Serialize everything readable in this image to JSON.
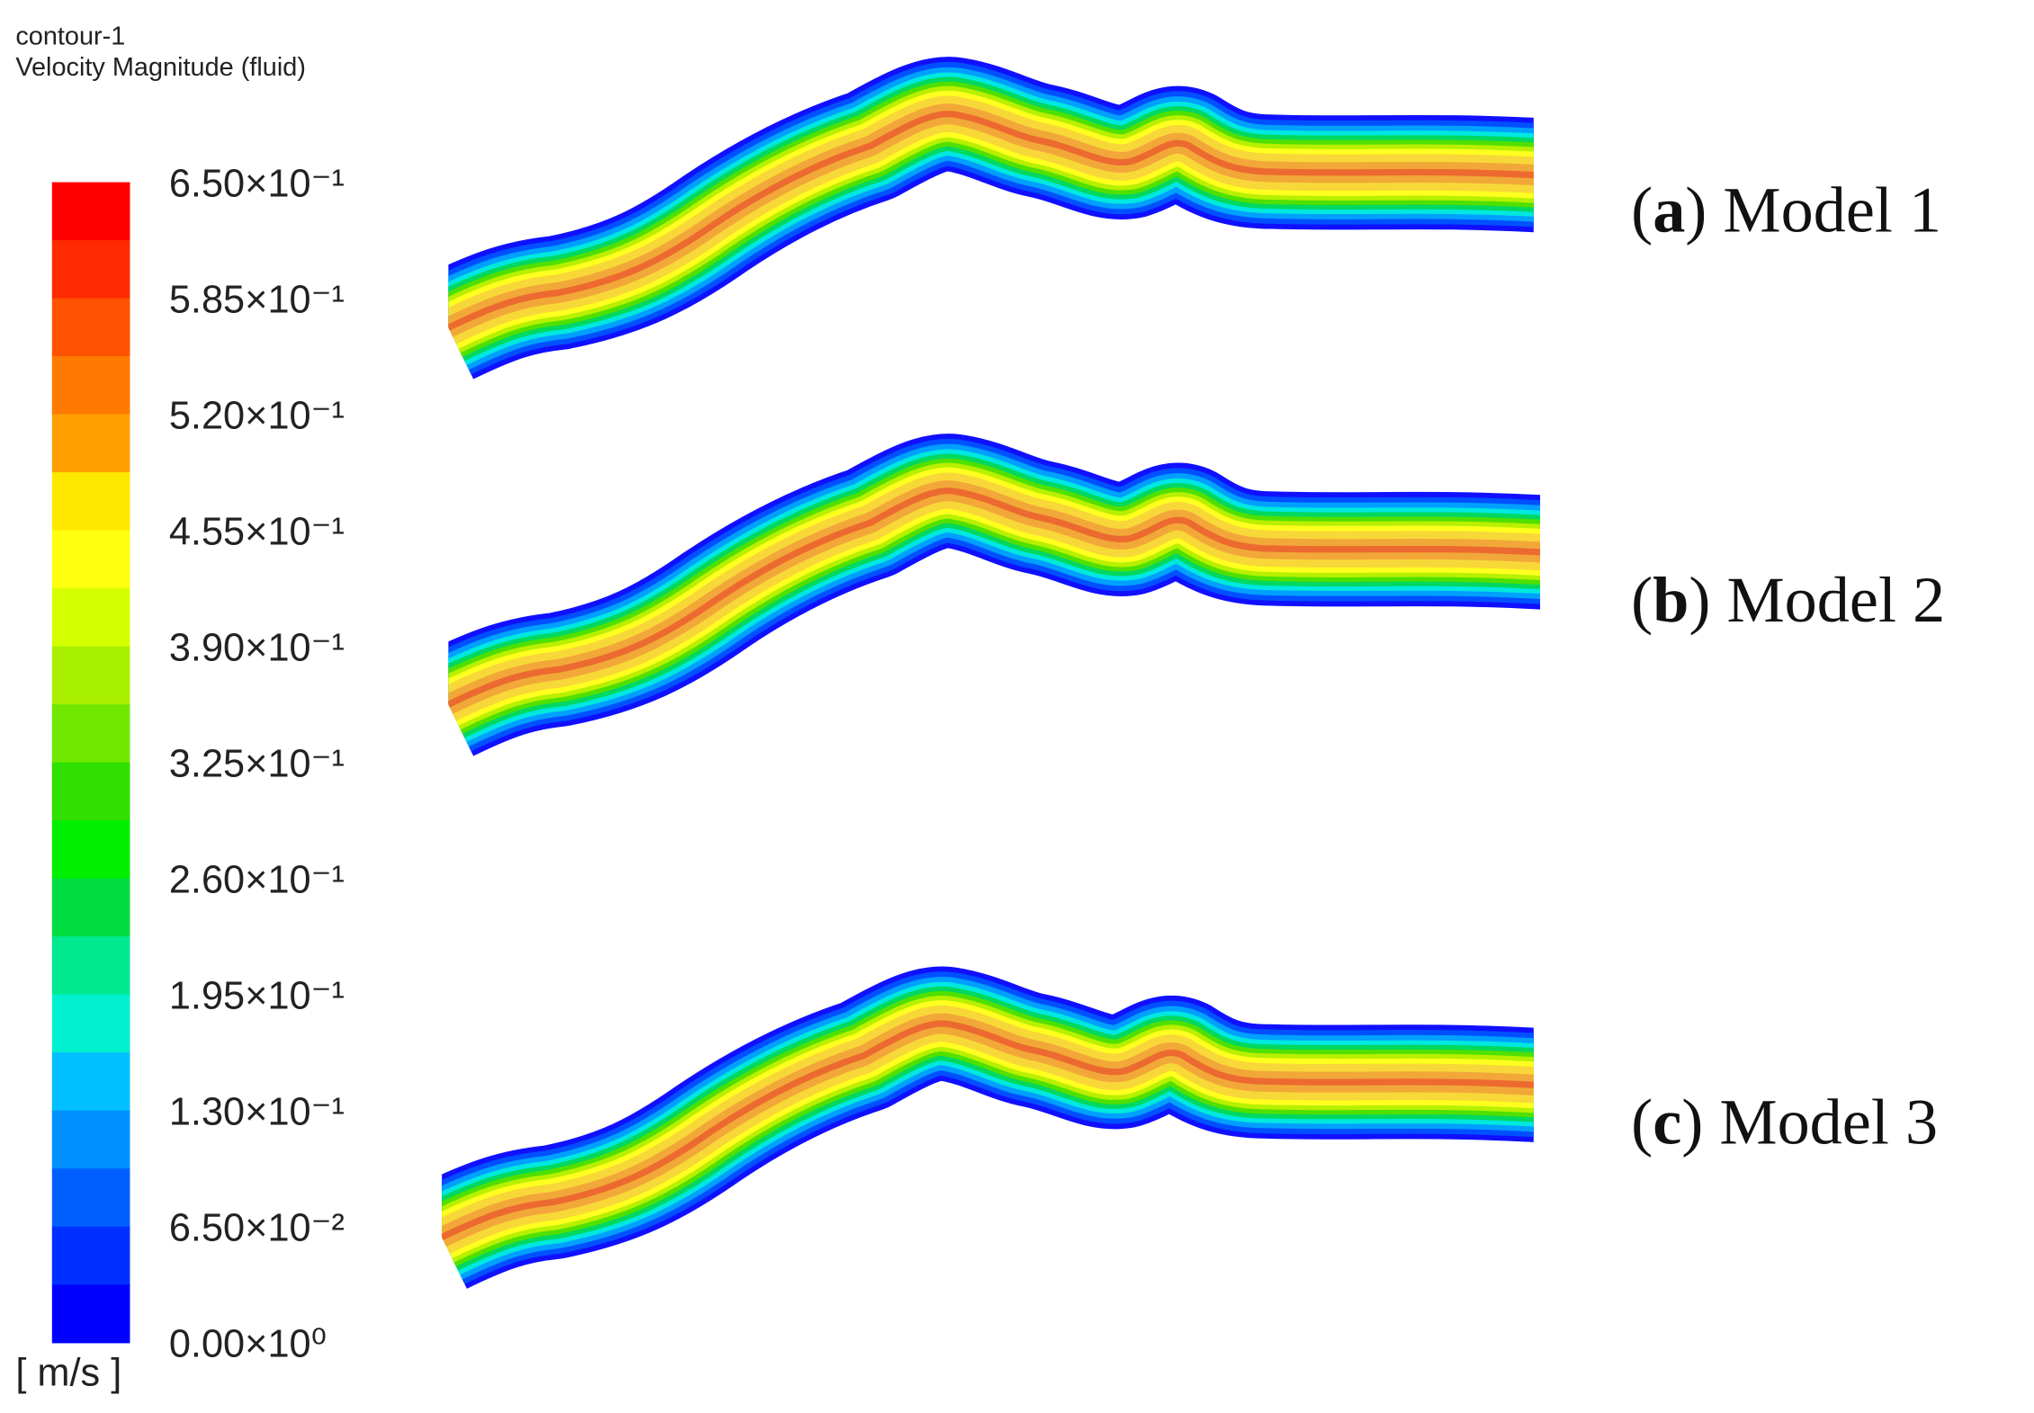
{
  "header": {
    "title": "contour-1",
    "variable": "Velocity Magnitude (fluid)"
  },
  "colorbar": {
    "labels": [
      "6.50×10⁻¹",
      "5.85×10⁻¹",
      "5.20×10⁻¹",
      "4.55×10⁻¹",
      "3.90×10⁻¹",
      "3.25×10⁻¹",
      "2.60×10⁻¹",
      "1.95×10⁻¹",
      "1.30×10⁻¹",
      "6.50×10⁻²",
      "0.00×10⁰"
    ],
    "unit": "[ m/s ]",
    "colors": [
      "#ff0000",
      "#ff2a00",
      "#ff5200",
      "#ff7a00",
      "#ffa000",
      "#ffc400",
      "#ffe800",
      "#ffff10",
      "#d4ff00",
      "#a8f000",
      "#70e800",
      "#30e000",
      "#00f000",
      "#00dd40",
      "#00e890",
      "#00f0d0",
      "#00e8ff",
      "#00c0ff",
      "#0090ff",
      "#0060ff",
      "#0030ff",
      "#0000ff"
    ]
  },
  "panels": [
    {
      "open": "(",
      "letter": "a",
      "rest": ") Model 1"
    },
    {
      "open": "(",
      "letter": "b",
      "rest": ") Model 2"
    },
    {
      "open": "(",
      "letter": "c",
      "rest": ") Model 3"
    }
  ]
}
